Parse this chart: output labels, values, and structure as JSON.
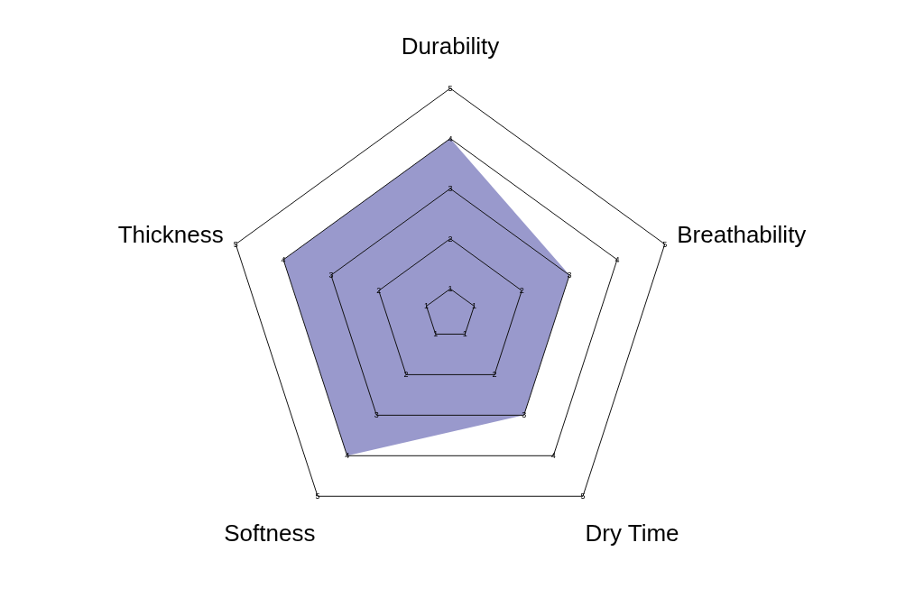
{
  "chart_data": {
    "type": "radar",
    "categories": [
      "Durability",
      "Breathability",
      "Dry Time",
      "Softness",
      "Thickness"
    ],
    "series": [
      {
        "color": "#9999cc",
        "values": [
          4,
          3,
          3,
          4,
          4
        ]
      }
    ],
    "ylim": [
      0.5,
      5
    ],
    "yticks": [
      1,
      2,
      3,
      4,
      5
    ],
    "annotations": [
      "1",
      "2",
      "3",
      "4",
      "5",
      "1",
      "2",
      "3",
      "4",
      "5",
      "1",
      "2",
      "3",
      "4",
      "5",
      "1",
      "2",
      "3",
      "4",
      "5"
    ]
  }
}
